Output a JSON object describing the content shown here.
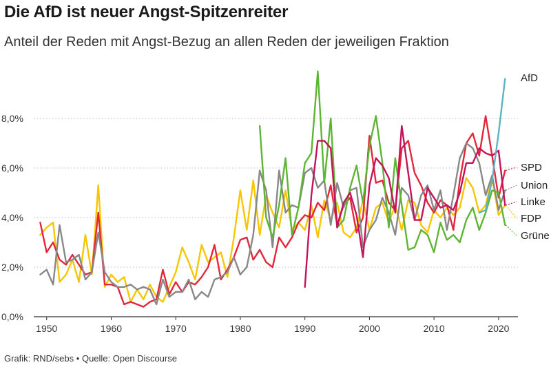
{
  "header": {
    "title": "Die AfD ist neuer Angst-Spitzenreiter",
    "subtitle": "Anteil der Reden mit Angst-Bezug an allen Reden der jeweiligen Fraktion"
  },
  "footer": {
    "credit": "Grafik: RND/sebs",
    "separator": "•",
    "source": "Quelle: Open Discourse"
  },
  "chart_data": {
    "type": "line",
    "title": "Die AfD ist neuer Angst-Spitzenreiter",
    "subtitle": "Anteil der Reden mit Angst-Bezug an allen Reden der jeweiligen Fraktion",
    "xlabel": "",
    "ylabel": "",
    "xlim": [
      1948,
      2023
    ],
    "ylim": [
      0,
      10
    ],
    "x_ticks": [
      1950,
      1960,
      1970,
      1980,
      1990,
      2000,
      2010,
      2020
    ],
    "y_ticks": [
      0,
      2,
      4,
      6,
      8
    ],
    "y_tick_labels": [
      "0,0%",
      "2,0%",
      "4,0%",
      "6,0%",
      "8,0%"
    ],
    "grid": "horizontal-dotted",
    "legend": "right-end labels",
    "series": [
      {
        "name": "FDP",
        "color": "#f7c600",
        "x": [
          1949,
          1950,
          1951,
          1952,
          1953,
          1954,
          1955,
          1956,
          1957,
          1958,
          1959,
          1960,
          1961,
          1962,
          1963,
          1964,
          1965,
          1966,
          1967,
          1968,
          1969,
          1970,
          1971,
          1972,
          1973,
          1974,
          1975,
          1976,
          1977,
          1978,
          1979,
          1980,
          1981,
          1982,
          1983,
          1984,
          1985,
          1986,
          1987,
          1988,
          1989,
          1990,
          1991,
          1992,
          1993,
          1994,
          1995,
          1996,
          1997,
          1998,
          1999,
          2000,
          2001,
          2002,
          2003,
          2004,
          2005,
          2006,
          2007,
          2008,
          2009,
          2010,
          2011,
          2012,
          2013,
          2014,
          2015,
          2016,
          2017,
          2018,
          2019,
          2020,
          2021
        ],
        "y": [
          3.3,
          3.6,
          3.8,
          1.4,
          1.7,
          2.3,
          1.4,
          3.3,
          1.7,
          5.3,
          1.2,
          1.7,
          1.4,
          1.6,
          0.6,
          1.1,
          0.7,
          1.3,
          0.8,
          0.6,
          1.2,
          1.8,
          2.8,
          2.2,
          1.5,
          2.9,
          2.2,
          2.4,
          2.6,
          1.6,
          3.2,
          5.1,
          3.5,
          5.5,
          3.3,
          4.9,
          4.2,
          3.6,
          5.1,
          3.5,
          3.8,
          3.5,
          4.5,
          3.2,
          4.7,
          3.9,
          4.6,
          3.4,
          3.2,
          3.6,
          4.7,
          3.5,
          4.4,
          4.6,
          3.8,
          4.5,
          3.5,
          4.7,
          4.6,
          3.7,
          3.4,
          4.3,
          4.0,
          4.4,
          4.1,
          4.4,
          5.6,
          5.2,
          4.2,
          4.5,
          5.6,
          4.1,
          4.5
        ]
      },
      {
        "name": "SPD",
        "color": "#e3273a",
        "x": [
          1949,
          1950,
          1951,
          1952,
          1953,
          1954,
          1955,
          1956,
          1957,
          1958,
          1959,
          1960,
          1961,
          1962,
          1963,
          1964,
          1965,
          1966,
          1967,
          1968,
          1969,
          1970,
          1971,
          1972,
          1973,
          1974,
          1975,
          1976,
          1977,
          1978,
          1979,
          1980,
          1981,
          1982,
          1983,
          1984,
          1985,
          1986,
          1987,
          1988,
          1989,
          1990,
          1991,
          1992,
          1993,
          1994,
          1995,
          1996,
          1997,
          1998,
          1999,
          2000,
          2001,
          2002,
          2003,
          2004,
          2005,
          2006,
          2007,
          2008,
          2009,
          2010,
          2011,
          2012,
          2013,
          2014,
          2015,
          2016,
          2017,
          2018,
          2019,
          2020,
          2021
        ],
        "y": [
          3.8,
          2.6,
          3.0,
          2.3,
          2.1,
          2.5,
          2.1,
          1.7,
          1.8,
          4.2,
          1.3,
          1.3,
          1.2,
          0.5,
          0.6,
          0.5,
          0.4,
          0.6,
          0.7,
          1.9,
          0.9,
          1.4,
          1.0,
          1.4,
          1.3,
          1.6,
          2.0,
          2.9,
          1.5,
          1.9,
          2.4,
          3.1,
          3.2,
          2.3,
          2.7,
          2.2,
          2.0,
          3.2,
          2.8,
          3.2,
          3.8,
          4.1,
          4.0,
          4.6,
          4.3,
          5.3,
          3.7,
          4.5,
          4.8,
          3.4,
          4.0,
          7.3,
          5.4,
          5.5,
          4.6,
          4.3,
          6.8,
          7.1,
          5.8,
          5.3,
          4.6,
          4.2,
          4.7,
          4.5,
          3.5,
          5.5,
          7.0,
          7.4,
          6.5,
          8.1,
          6.5,
          4.8,
          5.9
        ]
      },
      {
        "name": "Union",
        "color": "#888888",
        "x": [
          1949,
          1950,
          1951,
          1952,
          1953,
          1954,
          1955,
          1956,
          1957,
          1958,
          1959,
          1960,
          1961,
          1962,
          1963,
          1964,
          1965,
          1966,
          1967,
          1968,
          1969,
          1970,
          1971,
          1972,
          1973,
          1974,
          1975,
          1976,
          1977,
          1978,
          1979,
          1980,
          1981,
          1982,
          1983,
          1984,
          1985,
          1986,
          1987,
          1988,
          1989,
          1990,
          1991,
          1992,
          1993,
          1994,
          1995,
          1996,
          1997,
          1998,
          1999,
          2000,
          2001,
          2002,
          2003,
          2004,
          2005,
          2006,
          2007,
          2008,
          2009,
          2010,
          2011,
          2012,
          2013,
          2014,
          2015,
          2016,
          2017,
          2018,
          2019,
          2020,
          2021
        ],
        "y": [
          1.7,
          1.9,
          1.3,
          3.7,
          2.2,
          2.3,
          2.5,
          1.5,
          1.8,
          3.4,
          1.8,
          1.4,
          1.2,
          1.2,
          1.3,
          1.1,
          1.2,
          1.1,
          0.5,
          1.5,
          0.8,
          1.0,
          1.0,
          1.5,
          0.7,
          1.0,
          0.8,
          1.5,
          1.6,
          1.8,
          2.4,
          1.7,
          2.0,
          3.3,
          5.9,
          5.1,
          2.8,
          5.9,
          4.2,
          4.5,
          4.4,
          5.8,
          6.0,
          5.2,
          5.5,
          3.7,
          5.4,
          4.4,
          5.1,
          5.2,
          2.8,
          3.5,
          3.9,
          4.8,
          4.2,
          3.3,
          5.2,
          4.9,
          3.9,
          4.9,
          5.3,
          4.3,
          5.1,
          3.5,
          4.9,
          6.4,
          7.0,
          6.8,
          6.2,
          4.9,
          5.7,
          4.3,
          5.1
        ]
      },
      {
        "name": "Grüne",
        "color": "#5db534",
        "x": [
          1983,
          1984,
          1985,
          1986,
          1987,
          1988,
          1989,
          1990,
          1991,
          1992,
          1993,
          1994,
          1995,
          1996,
          1997,
          1998,
          1999,
          2000,
          2001,
          2002,
          2003,
          2004,
          2005,
          2006,
          2007,
          2008,
          2009,
          2010,
          2011,
          2012,
          2013,
          2014,
          2015,
          2016,
          2017,
          2018,
          2019,
          2020,
          2021
        ],
        "y": [
          7.7,
          4.0,
          3.2,
          4.5,
          6.4,
          3.3,
          4.4,
          6.2,
          6.6,
          9.9,
          5.4,
          8.0,
          3.6,
          3.9,
          5.2,
          6.1,
          4.6,
          6.9,
          8.1,
          6.2,
          3.6,
          6.4,
          4.5,
          2.7,
          2.8,
          3.5,
          3.3,
          2.6,
          3.8,
          3.1,
          3.3,
          3.0,
          3.9,
          4.4,
          3.5,
          4.2,
          5.1,
          5.0,
          3.7
        ]
      },
      {
        "name": "Linke",
        "color": "#c4135b",
        "x": [
          1990,
          1991,
          1992,
          1993,
          1994,
          1995,
          1996,
          1997,
          1998,
          1999,
          2000,
          2001,
          2002,
          2003,
          2004,
          2005,
          2006,
          2007,
          2008,
          2009,
          2010,
          2011,
          2012,
          2013,
          2014,
          2015,
          2016,
          2017,
          2018,
          2019,
          2020,
          2021
        ],
        "y": [
          1.2,
          4.9,
          7.1,
          7.1,
          6.8,
          3.6,
          4.6,
          5.0,
          4.1,
          2.4,
          5.3,
          6.4,
          6.1,
          5.6,
          4.2,
          7.7,
          5.8,
          3.9,
          3.9,
          5.2,
          4.8,
          4.4,
          4.5,
          4.3,
          5.0,
          6.2,
          6.2,
          6.8,
          6.6,
          6.5,
          6.7,
          4.5
        ]
      },
      {
        "name": "AfD",
        "color": "#5ab4c4",
        "x": [
          2017,
          2018,
          2019,
          2020,
          2021
        ],
        "y": [
          4.2,
          4.3,
          5.5,
          7.4,
          9.6
        ]
      }
    ],
    "end_labels": [
      "AfD",
      "SPD",
      "Union",
      "Linke",
      "FDP",
      "Grüne"
    ]
  }
}
